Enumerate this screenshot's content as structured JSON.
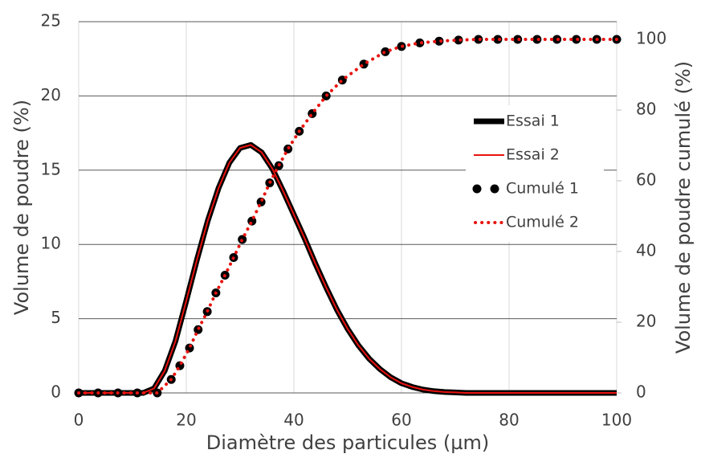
{
  "chart_data": {
    "type": "line",
    "xlabel": "Diamètre des particules (µm)",
    "ylabel": "Volume de poudre (%)",
    "y2label": "Volume de poudre cumulé (%)",
    "xlim": [
      0,
      100
    ],
    "xticks": [
      0,
      20,
      40,
      60,
      80,
      100
    ],
    "ylim": [
      0,
      25
    ],
    "yticks": [
      0,
      5,
      10,
      15,
      20,
      25
    ],
    "y2lim": [
      0,
      105
    ],
    "y2ticks": [
      0,
      20,
      40,
      60,
      80,
      100
    ],
    "grid": true,
    "legend": "upper right",
    "series": [
      {
        "name": "Essai 1",
        "color": "#000000",
        "style": "line",
        "x": [
          0,
          2,
          4,
          6,
          8,
          10,
          12,
          14,
          16,
          18,
          20,
          22,
          24,
          26,
          28,
          30,
          32,
          34,
          36,
          38,
          40,
          42,
          44,
          46,
          48,
          50,
          52,
          54,
          56,
          58,
          60,
          62,
          64,
          66,
          68,
          70,
          72,
          76,
          80,
          84,
          88,
          92,
          96,
          100
        ],
        "values": [
          0,
          0,
          0,
          0,
          0,
          0,
          0,
          0.3,
          1.5,
          3.5,
          6.2,
          9.0,
          11.6,
          13.8,
          15.5,
          16.5,
          16.7,
          16.2,
          15.1,
          13.6,
          12.0,
          10.4,
          8.7,
          7.1,
          5.6,
          4.3,
          3.2,
          2.3,
          1.6,
          1.05,
          0.65,
          0.4,
          0.22,
          0.12,
          0.06,
          0.03,
          0,
          0,
          0,
          0,
          0,
          0,
          0,
          0
        ]
      },
      {
        "name": "Essai 2",
        "color": "#e8130f",
        "style": "line",
        "x": [
          0,
          2,
          4,
          6,
          8,
          10,
          12,
          14,
          16,
          18,
          20,
          22,
          24,
          26,
          28,
          30,
          32,
          34,
          36,
          38,
          40,
          42,
          44,
          46,
          48,
          50,
          52,
          54,
          56,
          58,
          60,
          62,
          64,
          66,
          68,
          70,
          72,
          76,
          80,
          84,
          88,
          92,
          96,
          100
        ],
        "values": [
          0,
          0,
          0,
          0,
          0,
          0,
          0,
          0.3,
          1.5,
          3.5,
          6.2,
          9.0,
          11.6,
          13.8,
          15.5,
          16.5,
          16.7,
          16.2,
          15.1,
          13.6,
          12.0,
          10.4,
          8.7,
          7.1,
          5.6,
          4.3,
          3.2,
          2.3,
          1.6,
          1.05,
          0.65,
          0.4,
          0.22,
          0.12,
          0.06,
          0.03,
          0,
          0,
          0,
          0,
          0,
          0,
          0,
          0
        ]
      },
      {
        "name": "Cumulé 1",
        "color": "#000000",
        "style": "dots",
        "axis": "y2",
        "x": [
          0,
          3.6,
          7.3,
          10.9,
          14.6,
          17.2,
          18.8,
          20.6,
          22.2,
          23.9,
          25.5,
          27.2,
          28.8,
          30.4,
          32.2,
          33.9,
          35.5,
          37.2,
          38.9,
          41,
          43.4,
          46,
          49,
          53,
          57,
          60,
          63.4,
          67,
          70.6,
          74.3,
          77.9,
          81.6,
          85.2,
          88.9,
          92.5,
          96.3,
          100
        ],
        "values": [
          0,
          0,
          0,
          0,
          0,
          3.8,
          7.7,
          12.7,
          17.9,
          23,
          28.3,
          33.3,
          38.3,
          43.4,
          48.6,
          54,
          59.4,
          64.3,
          69,
          74,
          79,
          84,
          88.5,
          93,
          96.5,
          98,
          99,
          99.5,
          99.8,
          100,
          100,
          100,
          100,
          100,
          100,
          100,
          100
        ]
      },
      {
        "name": "Cumulé 2",
        "color": "#e8130f",
        "style": "dotted",
        "axis": "y2",
        "x": [
          0,
          3.6,
          7.3,
          10.9,
          14.6,
          17.2,
          18.8,
          20.6,
          22.2,
          23.9,
          25.5,
          27.2,
          28.8,
          30.4,
          32.2,
          33.9,
          35.5,
          37.2,
          38.9,
          41,
          43.4,
          46,
          49,
          53,
          57,
          60,
          63.4,
          67,
          70.6,
          74.3,
          77.9,
          81.6,
          85.2,
          88.9,
          92.5,
          96.3,
          100
        ],
        "values": [
          0,
          0,
          0,
          0,
          0,
          3.8,
          7.7,
          12.7,
          17.9,
          23,
          28.3,
          33.3,
          38.3,
          43.4,
          48.6,
          54,
          59.4,
          64.3,
          69,
          74,
          79,
          84,
          88.5,
          93,
          96.5,
          98,
          99,
          99.5,
          99.8,
          100,
          100,
          100,
          100,
          100,
          100,
          100,
          100
        ]
      }
    ]
  }
}
